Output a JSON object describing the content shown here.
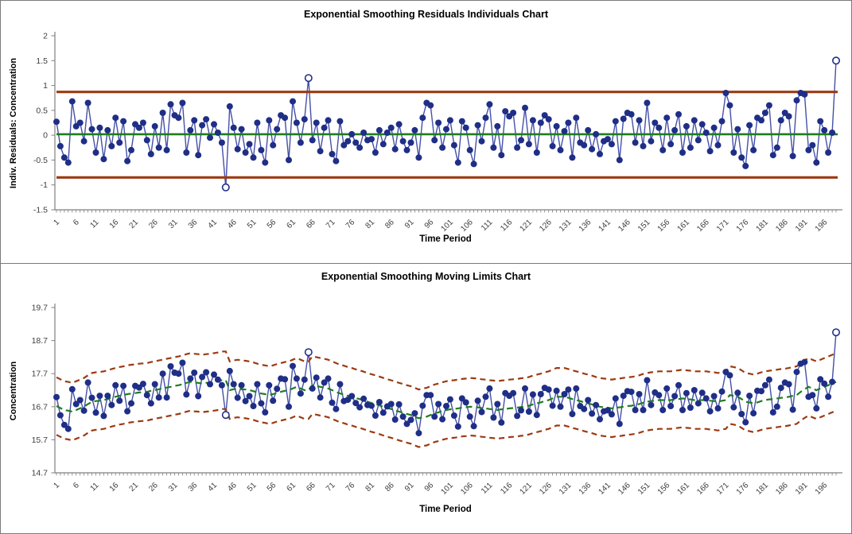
{
  "window": {
    "background": "#FFFFFF",
    "border_color": "#7A7A7A"
  },
  "chart_data": [
    {
      "type": "line",
      "title": "Exponential Smoothing Residuals Individuals Chart",
      "xlabel": "Time Period",
      "ylabel": "Indiv. Residuals: Concentration",
      "ylim": [
        -1.5,
        2
      ],
      "yticks": [
        2,
        1.5,
        1,
        0.5,
        0,
        -0.5,
        -1,
        -1.5
      ],
      "ytick_labels": [
        "2",
        "1.5",
        "1",
        "0.5",
        "0",
        "-0.5",
        "-1",
        "-1.5"
      ],
      "xticks": [
        1,
        6,
        11,
        16,
        21,
        26,
        31,
        36,
        41,
        46,
        51,
        56,
        61,
        66,
        71,
        76,
        81,
        86,
        91,
        96,
        101,
        106,
        111,
        116,
        121,
        126,
        131,
        136,
        141,
        146,
        151,
        156,
        161,
        166,
        171,
        176,
        181,
        186,
        191,
        196
      ],
      "x_range": [
        1,
        199
      ],
      "grid": false,
      "legend": "none",
      "ucl": 0.87,
      "cl": 0.02,
      "lcl": -0.85,
      "out_of_control_periods": [
        44,
        65,
        199
      ],
      "values": [
        0.27,
        -0.22,
        -0.45,
        -0.55,
        0.68,
        0.18,
        0.25,
        -0.12,
        0.65,
        0.12,
        -0.35,
        0.15,
        -0.48,
        0.1,
        -0.22,
        0.35,
        -0.15,
        0.28,
        -0.52,
        -0.3,
        0.22,
        0.15,
        0.25,
        -0.1,
        -0.38,
        0.18,
        -0.25,
        0.45,
        -0.3,
        0.62,
        0.4,
        0.35,
        0.65,
        -0.35,
        0.1,
        0.3,
        -0.4,
        0.2,
        0.32,
        -0.05,
        0.22,
        0.05,
        -0.15,
        -1.05,
        0.58,
        0.15,
        -0.28,
        0.12,
        -0.35,
        -0.18,
        -0.45,
        0.25,
        -0.3,
        -0.55,
        0.3,
        -0.2,
        0.12,
        0.4,
        0.35,
        -0.5,
        0.68,
        0.25,
        -0.15,
        0.32,
        1.15,
        -0.1,
        0.25,
        -0.32,
        0.15,
        0.3,
        -0.38,
        -0.52,
        0.28,
        -0.2,
        -0.12,
        0.02,
        -0.15,
        -0.25,
        0.05,
        -0.1,
        -0.08,
        -0.35,
        0.1,
        -0.18,
        0.05,
        0.15,
        -0.28,
        0.22,
        -0.12,
        -0.3,
        -0.15,
        0.1,
        -0.45,
        0.35,
        0.65,
        0.6,
        -0.1,
        0.25,
        -0.25,
        0.12,
        0.3,
        -0.2,
        -0.55,
        0.28,
        0.15,
        -0.3,
        -0.58,
        0.2,
        -0.12,
        0.35,
        0.62,
        -0.25,
        0.18,
        -0.4,
        0.48,
        0.38,
        0.45,
        -0.25,
        -0.1,
        0.55,
        -0.18,
        0.3,
        -0.35,
        0.25,
        0.4,
        0.32,
        -0.22,
        0.18,
        -0.3,
        0.08,
        0.25,
        -0.45,
        0.35,
        -0.15,
        -0.2,
        0.1,
        -0.28,
        0.02,
        -0.38,
        -0.12,
        -0.08,
        -0.18,
        0.28,
        -0.5,
        0.33,
        0.45,
        0.42,
        -0.15,
        0.3,
        -0.22,
        0.65,
        -0.12,
        0.25,
        0.15,
        -0.3,
        0.35,
        -0.18,
        0.1,
        0.42,
        -0.35,
        0.18,
        -0.25,
        0.3,
        -0.1,
        0.22,
        0.05,
        -0.32,
        0.15,
        -0.2,
        0.28,
        0.85,
        0.6,
        -0.35,
        0.12,
        -0.45,
        -0.62,
        0.2,
        -0.3,
        0.35,
        0.3,
        0.45,
        0.6,
        -0.4,
        -0.25,
        0.3,
        0.45,
        0.38,
        -0.42,
        0.7,
        0.85,
        0.82,
        -0.3,
        -0.2,
        -0.55,
        0.28,
        0.1,
        -0.35,
        0.05,
        1.5
      ],
      "colors": {
        "marker": "#1F2E86",
        "line": "#4450A8",
        "limits": "#9C3A12",
        "centerline": "#1E7D1E",
        "axis": "#808080",
        "tick_text": "#404040"
      }
    },
    {
      "type": "line",
      "title": "Exponential Smoothing Moving Limits Chart",
      "xlabel": "Time Period",
      "ylabel": "Concentration",
      "ylim": [
        14.7,
        19.7
      ],
      "yticks": [
        19.7,
        18.7,
        17.7,
        16.7,
        15.7,
        14.7
      ],
      "ytick_labels": [
        "19.7",
        "18.7",
        "17.7",
        "16.7",
        "15.7",
        "14.7"
      ],
      "xticks": [
        1,
        6,
        11,
        16,
        21,
        26,
        31,
        36,
        41,
        46,
        51,
        56,
        61,
        66,
        71,
        76,
        81,
        86,
        91,
        96,
        101,
        106,
        111,
        116,
        121,
        126,
        131,
        136,
        141,
        146,
        151,
        156,
        161,
        166,
        171,
        176,
        181,
        186,
        191,
        196
      ],
      "x_range": [
        1,
        199
      ],
      "grid": false,
      "legend": "none",
      "limit_offset": 0.87,
      "out_of_control_periods": [
        44,
        65,
        199
      ],
      "values": [
        16.99,
        16.44,
        16.15,
        16.03,
        17.23,
        16.78,
        16.9,
        16.58,
        17.43,
        16.97,
        16.52,
        17.03,
        16.42,
        17.03,
        16.75,
        17.35,
        16.88,
        17.33,
        16.56,
        16.8,
        17.33,
        17.28,
        17.39,
        17.05,
        16.8,
        17.38,
        16.98,
        17.7,
        16.98,
        17.92,
        17.73,
        17.7,
        18.03,
        17.07,
        17.55,
        17.73,
        17.02,
        17.6,
        17.74,
        17.38,
        17.67,
        17.52,
        17.35,
        16.45,
        17.78,
        17.38,
        16.97,
        17.35,
        16.87,
        17.02,
        16.72,
        17.38,
        16.8,
        16.53,
        17.35,
        16.88,
        17.24,
        17.55,
        17.53,
        16.7,
        17.93,
        17.55,
        17.1,
        17.52,
        18.35,
        17.25,
        17.58,
        16.98,
        17.43,
        17.55,
        16.82,
        16.63,
        17.38,
        16.87,
        16.91,
        17.02,
        16.81,
        16.68,
        16.94,
        16.75,
        16.73,
        16.43,
        16.84,
        16.52,
        16.71,
        16.78,
        16.31,
        16.77,
        16.4,
        16.18,
        16.3,
        16.5,
        15.9,
        16.73,
        17.05,
        17.05,
        16.4,
        16.78,
        16.32,
        16.72,
        16.92,
        16.43,
        16.1,
        16.95,
        16.83,
        16.4,
        16.11,
        16.88,
        16.54,
        17.0,
        17.25,
        16.37,
        16.78,
        16.22,
        17.11,
        17.03,
        17.11,
        16.42,
        16.59,
        17.25,
        16.55,
        17.07,
        16.45,
        17.08,
        17.27,
        17.22,
        16.73,
        17.18,
        16.7,
        17.08,
        17.22,
        16.48,
        17.25,
        16.72,
        16.63,
        16.9,
        16.49,
        16.75,
        16.32,
        16.56,
        16.59,
        16.47,
        16.95,
        16.18,
        17.03,
        17.17,
        17.15,
        16.6,
        17.08,
        16.6,
        17.5,
        16.75,
        17.13,
        17.05,
        16.6,
        17.25,
        16.72,
        17.02,
        17.35,
        16.6,
        17.11,
        16.67,
        17.2,
        16.8,
        17.12,
        16.95,
        16.56,
        17.02,
        16.65,
        17.16,
        17.75,
        17.65,
        16.68,
        17.12,
        16.48,
        16.23,
        17.03,
        16.5,
        17.18,
        17.17,
        17.35,
        17.52,
        16.53,
        16.7,
        17.27,
        17.43,
        17.38,
        16.61,
        17.75,
        18.0,
        18.05,
        17.0,
        17.05,
        16.65,
        17.53,
        17.4,
        17.0,
        17.45,
        18.95
      ],
      "moving_center": [
        16.72,
        16.66,
        16.6,
        16.58,
        16.55,
        16.6,
        16.65,
        16.7,
        16.78,
        16.85,
        16.87,
        16.88,
        16.9,
        16.93,
        16.97,
        17.0,
        17.03,
        17.05,
        17.08,
        17.1,
        17.11,
        17.13,
        17.14,
        17.15,
        17.18,
        17.2,
        17.23,
        17.25,
        17.28,
        17.3,
        17.33,
        17.35,
        17.38,
        17.42,
        17.45,
        17.43,
        17.42,
        17.4,
        17.42,
        17.43,
        17.45,
        17.47,
        17.5,
        17.5,
        17.2,
        17.23,
        17.25,
        17.23,
        17.22,
        17.2,
        17.17,
        17.13,
        17.1,
        17.08,
        17.05,
        17.08,
        17.12,
        17.15,
        17.18,
        17.2,
        17.25,
        17.3,
        17.25,
        17.2,
        17.2,
        17.35,
        17.33,
        17.3,
        17.28,
        17.25,
        17.2,
        17.15,
        17.1,
        17.07,
        17.03,
        17.0,
        16.96,
        16.93,
        16.89,
        16.85,
        16.81,
        16.78,
        16.74,
        16.7,
        16.66,
        16.63,
        16.59,
        16.55,
        16.52,
        16.48,
        16.45,
        16.4,
        16.35,
        16.38,
        16.4,
        16.45,
        16.5,
        16.53,
        16.57,
        16.6,
        16.62,
        16.63,
        16.65,
        16.67,
        16.68,
        16.7,
        16.69,
        16.68,
        16.66,
        16.65,
        16.63,
        16.62,
        16.6,
        16.62,
        16.63,
        16.65,
        16.66,
        16.67,
        16.69,
        16.7,
        16.73,
        16.77,
        16.8,
        16.83,
        16.87,
        16.9,
        16.95,
        17.0,
        17.0,
        17.0,
        16.97,
        16.93,
        16.9,
        16.87,
        16.83,
        16.8,
        16.77,
        16.73,
        16.7,
        16.68,
        16.67,
        16.65,
        16.67,
        16.68,
        16.7,
        16.72,
        16.73,
        16.75,
        16.78,
        16.82,
        16.85,
        16.87,
        16.88,
        16.9,
        16.9,
        16.9,
        16.9,
        16.92,
        16.93,
        16.95,
        16.93,
        16.92,
        16.9,
        16.9,
        16.9,
        16.9,
        16.88,
        16.87,
        16.85,
        16.88,
        16.9,
        17.05,
        17.03,
        17.0,
        16.93,
        16.85,
        16.83,
        16.8,
        16.83,
        16.87,
        16.9,
        16.92,
        16.93,
        16.95,
        16.97,
        16.98,
        17.0,
        17.03,
        17.05,
        17.15,
        17.23,
        17.3,
        17.25,
        17.2,
        17.25,
        17.3,
        17.35,
        17.4,
        17.45
      ],
      "colors": {
        "marker": "#1F2E86",
        "line": "#4450A8",
        "limits": "#9C3A12",
        "centerline": "#1E7D1E",
        "axis": "#808080",
        "tick_text": "#404040"
      }
    }
  ]
}
